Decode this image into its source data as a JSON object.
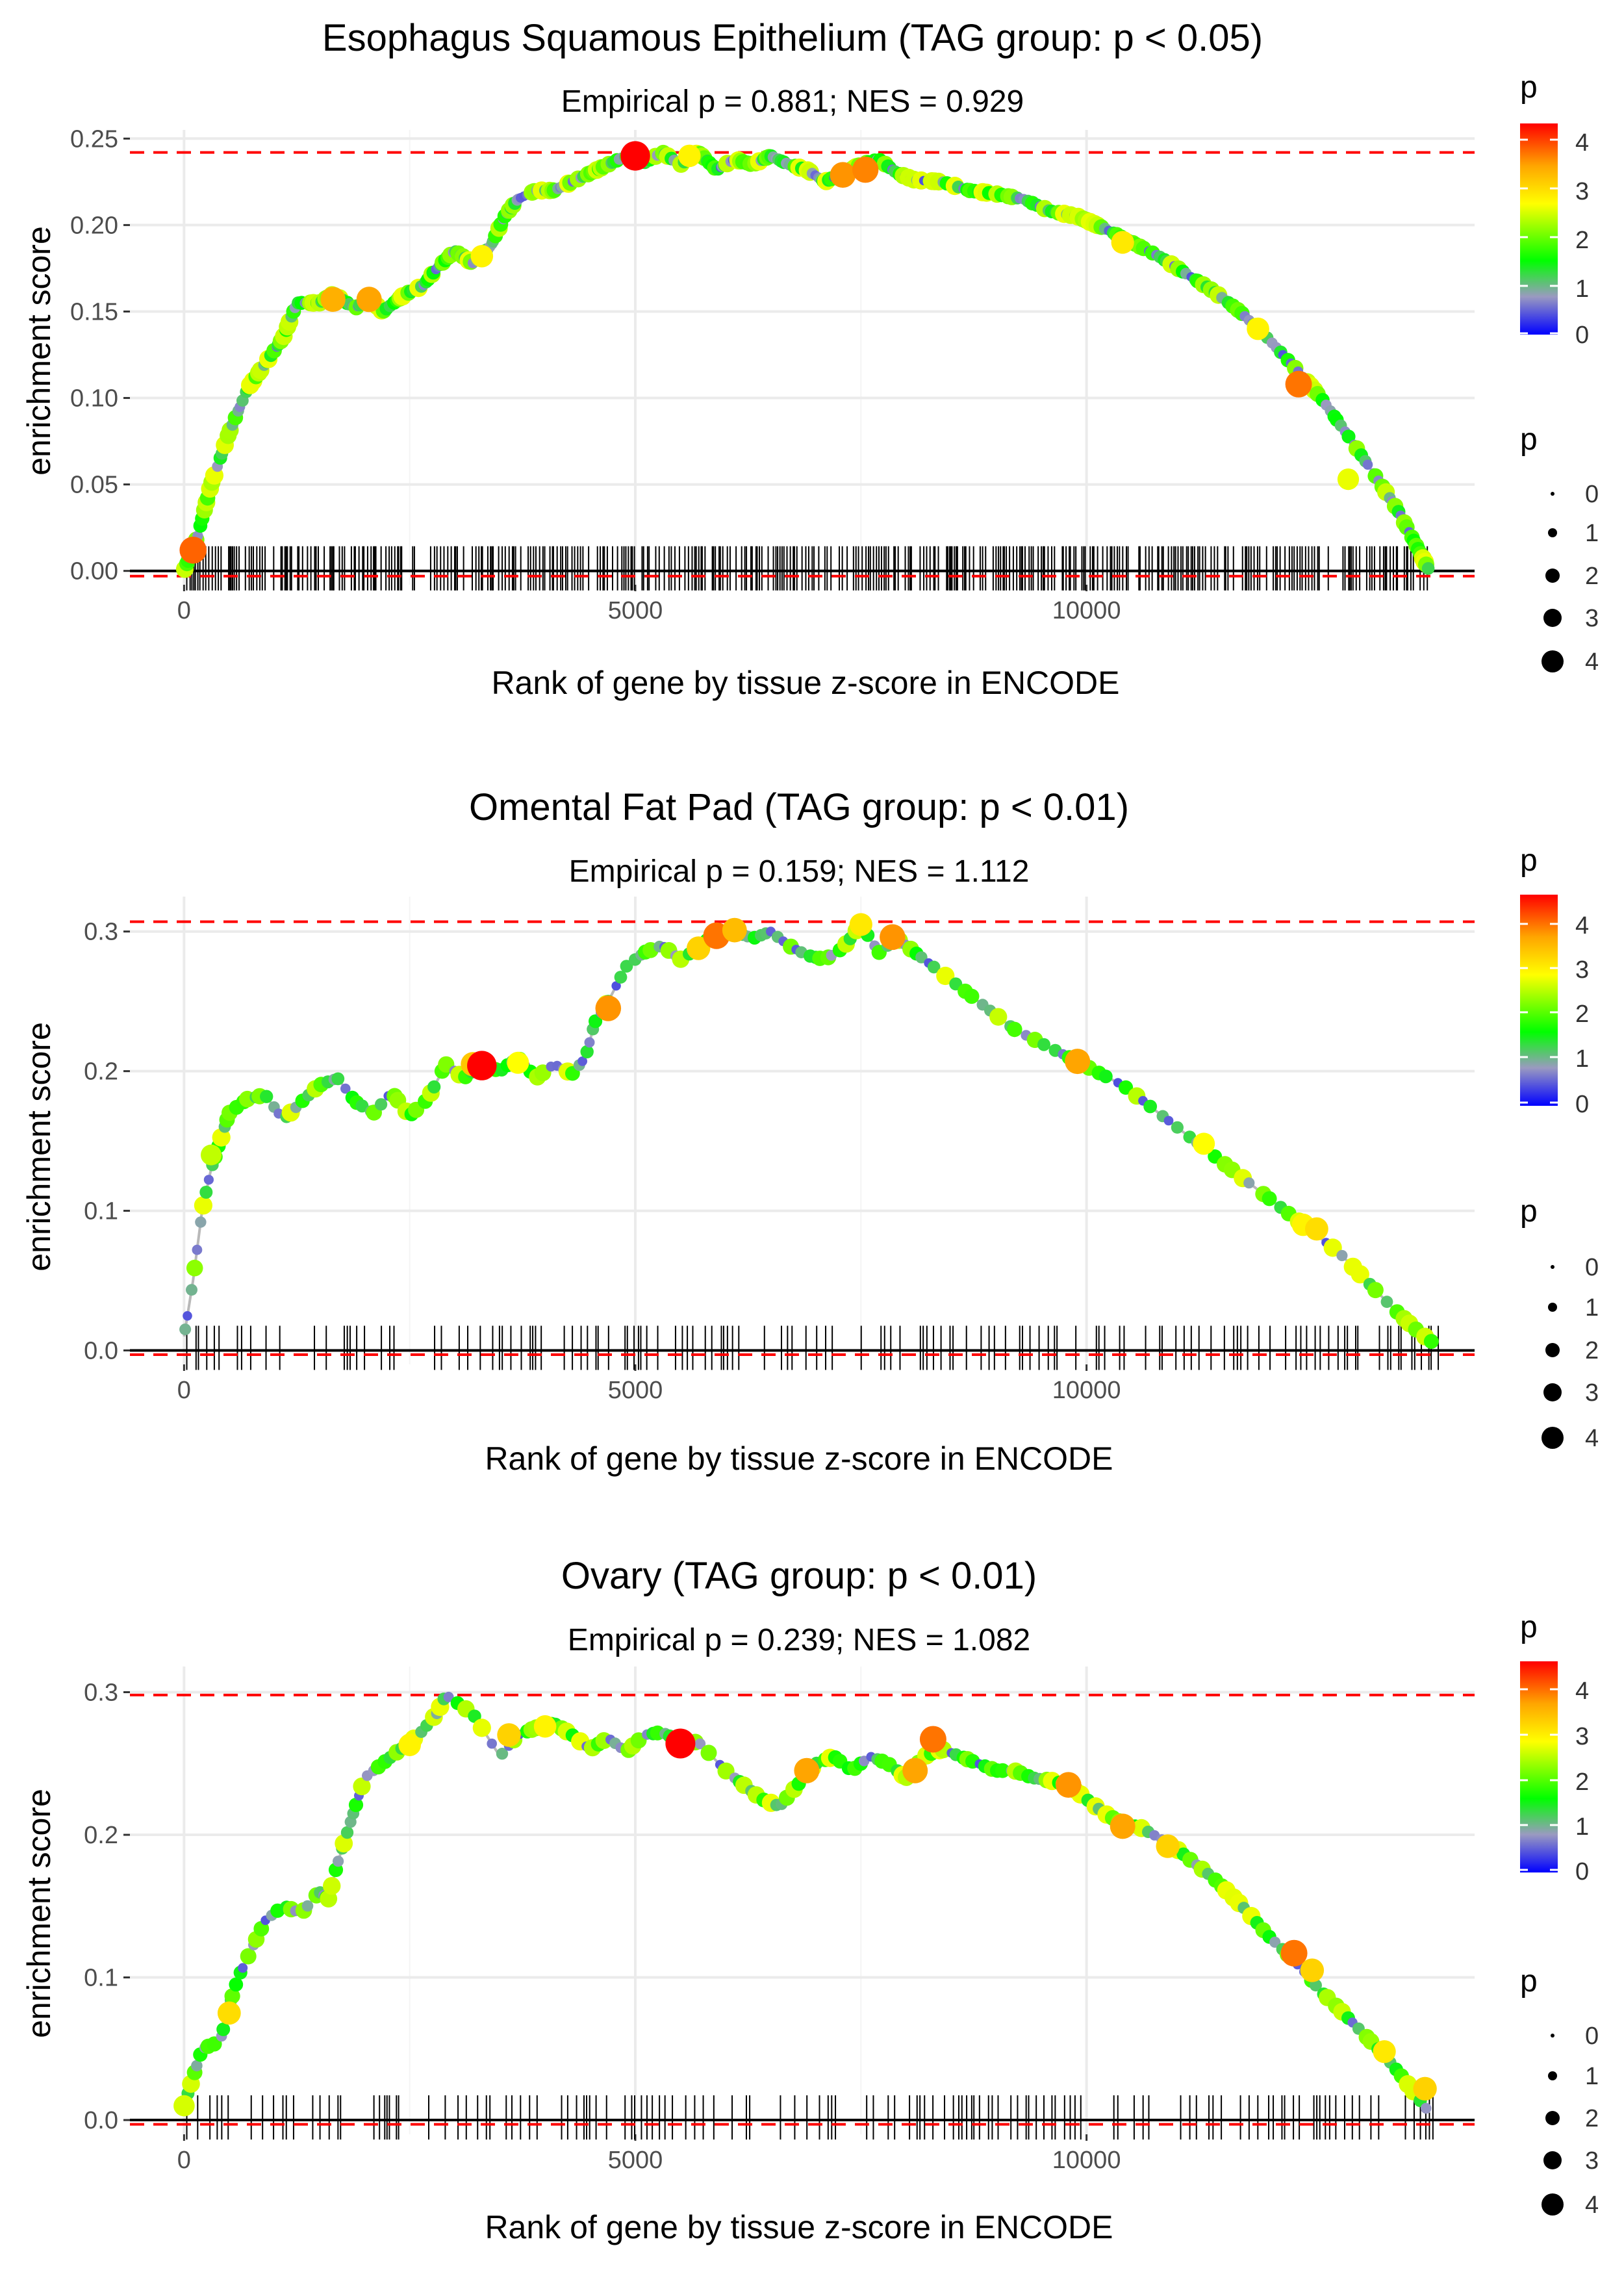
{
  "axis_common": {
    "xlabel": "Rank of gene by tissue z-score in ENCODE",
    "ylabel": "enrichment score",
    "x_ticks": [
      "0",
      "5000",
      "10000"
    ],
    "x_tick_values": [
      0,
      5000,
      10000
    ],
    "xlim": [
      -600,
      14300
    ],
    "legend_color_title": "p",
    "legend_color_ticks": [
      "4",
      "3",
      "2",
      "1",
      "0"
    ],
    "legend_size_title": "p",
    "legend_size_entries": [
      "0",
      "1",
      "2",
      "3",
      "4"
    ]
  },
  "colors": {
    "scale": [
      "#0000ff",
      "#9a9ac0",
      "#00ff00",
      "#ffff00",
      "#ffa500",
      "#ff0000"
    ],
    "line": "#b8b8b8",
    "dashed": "#ff0000",
    "grid": "#ebebeb",
    "rug": "#000000"
  },
  "chart_data": [
    {
      "type": "scatter",
      "title": "Esophagus Squamous Epithelium (TAG group: p < 0.05)",
      "subtitle": "Empirical p = 0.881; NES = 0.929",
      "xlabel": "Rank of gene by tissue z-score in ENCODE",
      "ylabel": "enrichment score",
      "ylim": [
        -0.008,
        0.255
      ],
      "y_ticks": [
        "0.00",
        "0.05",
        "0.10",
        "0.15",
        "0.20",
        "0.25"
      ],
      "y_tick_values": [
        0,
        0.05,
        0.1,
        0.15,
        0.2,
        0.25
      ],
      "max_es": 0.242,
      "min_es": -0.003,
      "gene_count": 13800,
      "curve": [
        [
          0,
          0
        ],
        [
          150,
          0.02
        ],
        [
          300,
          0.05
        ],
        [
          500,
          0.08
        ],
        [
          700,
          0.105
        ],
        [
          900,
          0.12
        ],
        [
          1100,
          0.135
        ],
        [
          1250,
          0.155
        ],
        [
          1500,
          0.155
        ],
        [
          1650,
          0.16
        ],
        [
          1900,
          0.152
        ],
        [
          2050,
          0.158
        ],
        [
          2200,
          0.15
        ],
        [
          2450,
          0.16
        ],
        [
          2650,
          0.165
        ],
        [
          2800,
          0.175
        ],
        [
          3000,
          0.185
        ],
        [
          3200,
          0.178
        ],
        [
          3400,
          0.188
        ],
        [
          3550,
          0.205
        ],
        [
          3700,
          0.215
        ],
        [
          3900,
          0.22
        ],
        [
          4100,
          0.22
        ],
        [
          4300,
          0.225
        ],
        [
          4500,
          0.23
        ],
        [
          4700,
          0.235
        ],
        [
          4900,
          0.24
        ],
        [
          5100,
          0.236
        ],
        [
          5300,
          0.242
        ],
        [
          5500,
          0.235
        ],
        [
          5700,
          0.242
        ],
        [
          5900,
          0.232
        ],
        [
          6100,
          0.238
        ],
        [
          6300,
          0.235
        ],
        [
          6500,
          0.24
        ],
        [
          6700,
          0.235
        ],
        [
          6900,
          0.232
        ],
        [
          7100,
          0.225
        ],
        [
          7300,
          0.23
        ],
        [
          7500,
          0.235
        ],
        [
          7700,
          0.238
        ],
        [
          7900,
          0.23
        ],
        [
          8100,
          0.226
        ],
        [
          8400,
          0.225
        ],
        [
          8700,
          0.22
        ],
        [
          9000,
          0.218
        ],
        [
          9300,
          0.215
        ],
        [
          9600,
          0.208
        ],
        [
          9900,
          0.205
        ],
        [
          10200,
          0.198
        ],
        [
          10500,
          0.19
        ],
        [
          10800,
          0.182
        ],
        [
          11100,
          0.172
        ],
        [
          11400,
          0.162
        ],
        [
          11700,
          0.15
        ],
        [
          12000,
          0.135
        ],
        [
          12300,
          0.118
        ],
        [
          12600,
          0.1
        ],
        [
          12900,
          0.078
        ],
        [
          13200,
          0.055
        ],
        [
          13450,
          0.035
        ],
        [
          13650,
          0.015
        ],
        [
          13800,
          0.0
        ]
      ],
      "highlights": [
        [
          100,
          0.012,
          4.0
        ],
        [
          1650,
          0.157,
          3.5
        ],
        [
          2050,
          0.157,
          3.6
        ],
        [
          3300,
          0.182,
          2.9
        ],
        [
          5000,
          0.24,
          4.6
        ],
        [
          5600,
          0.24,
          2.9
        ],
        [
          7300,
          0.229,
          3.7
        ],
        [
          7550,
          0.232,
          3.8
        ],
        [
          10400,
          0.19,
          3.0
        ],
        [
          11900,
          0.14,
          2.9
        ],
        [
          12350,
          0.108,
          3.9
        ],
        [
          12900,
          0.053,
          2.7
        ]
      ]
    },
    {
      "type": "scatter",
      "title": "Omental Fat Pad (TAG group: p < 0.01)",
      "subtitle": "Empirical p = 0.159; NES = 1.112",
      "xlabel": "Rank of gene by tissue z-score in ENCODE",
      "ylabel": "enrichment score",
      "ylim": [
        -0.01,
        0.325
      ],
      "y_ticks": [
        "0.0",
        "0.1",
        "0.2",
        "0.3"
      ],
      "y_tick_values": [
        0,
        0.1,
        0.2,
        0.3
      ],
      "max_es": 0.307,
      "min_es": -0.003,
      "gene_count": 13900,
      "curve": [
        [
          0,
          0.01
        ],
        [
          100,
          0.05
        ],
        [
          200,
          0.1
        ],
        [
          300,
          0.13
        ],
        [
          400,
          0.15
        ],
        [
          500,
          0.17
        ],
        [
          700,
          0.18
        ],
        [
          900,
          0.183
        ],
        [
          1100,
          0.165
        ],
        [
          1300,
          0.178
        ],
        [
          1500,
          0.19
        ],
        [
          1700,
          0.195
        ],
        [
          1900,
          0.178
        ],
        [
          2100,
          0.17
        ],
        [
          2300,
          0.185
        ],
        [
          2500,
          0.168
        ],
        [
          2700,
          0.18
        ],
        [
          2900,
          0.205
        ],
        [
          3100,
          0.195
        ],
        [
          3300,
          0.205
        ],
        [
          3500,
          0.2
        ],
        [
          3700,
          0.21
        ],
        [
          3900,
          0.195
        ],
        [
          4100,
          0.205
        ],
        [
          4300,
          0.198
        ],
        [
          4450,
          0.21
        ],
        [
          4550,
          0.235
        ],
        [
          4700,
          0.25
        ],
        [
          4900,
          0.275
        ],
        [
          5100,
          0.285
        ],
        [
          5300,
          0.29
        ],
        [
          5500,
          0.28
        ],
        [
          5700,
          0.288
        ],
        [
          5900,
          0.3
        ],
        [
          6100,
          0.3
        ],
        [
          6300,
          0.295
        ],
        [
          6500,
          0.3
        ],
        [
          6700,
          0.29
        ],
        [
          6900,
          0.283
        ],
        [
          7100,
          0.28
        ],
        [
          7300,
          0.288
        ],
        [
          7500,
          0.305
        ],
        [
          7700,
          0.285
        ],
        [
          7900,
          0.295
        ],
        [
          8100,
          0.285
        ],
        [
          8300,
          0.275
        ],
        [
          8600,
          0.26
        ],
        [
          8900,
          0.245
        ],
        [
          9200,
          0.23
        ],
        [
          9500,
          0.22
        ],
        [
          9800,
          0.21
        ],
        [
          10100,
          0.2
        ],
        [
          10400,
          0.19
        ],
        [
          10700,
          0.175
        ],
        [
          11000,
          0.16
        ],
        [
          11300,
          0.145
        ],
        [
          11600,
          0.13
        ],
        [
          11900,
          0.115
        ],
        [
          12200,
          0.1
        ],
        [
          12500,
          0.085
        ],
        [
          12800,
          0.07
        ],
        [
          13100,
          0.05
        ],
        [
          13400,
          0.03
        ],
        [
          13650,
          0.015
        ],
        [
          13850,
          0.005
        ]
      ],
      "highlights": [
        [
          300,
          0.14,
          2.5
        ],
        [
          3200,
          0.205,
          3.3
        ],
        [
          3300,
          0.204,
          4.6
        ],
        [
          3700,
          0.206,
          2.8
        ],
        [
          4700,
          0.245,
          3.7
        ],
        [
          5700,
          0.288,
          3.2
        ],
        [
          5900,
          0.297,
          3.9
        ],
        [
          6100,
          0.301,
          3.4
        ],
        [
          7500,
          0.305,
          3.0
        ],
        [
          7850,
          0.296,
          3.7
        ],
        [
          9900,
          0.207,
          3.6
        ],
        [
          11300,
          0.148,
          2.8
        ],
        [
          12400,
          0.09,
          2.9
        ],
        [
          12550,
          0.087,
          3.1
        ]
      ]
    },
    {
      "type": "scatter",
      "title": "Ovary (TAG group: p < 0.01)",
      "subtitle": "Empirical p = 0.239; NES = 1.082",
      "xlabel": "Rank of gene by tissue z-score in ENCODE",
      "ylabel": "enrichment score",
      "ylim": [
        -0.01,
        0.318
      ],
      "y_ticks": [
        "0.0",
        "0.1",
        "0.2",
        "0.3"
      ],
      "y_tick_values": [
        0,
        0.1,
        0.2,
        0.3
      ],
      "max_es": 0.298,
      "min_es": -0.003,
      "gene_count": 13900,
      "curve": [
        [
          0,
          0.01
        ],
        [
          100,
          0.03
        ],
        [
          200,
          0.05
        ],
        [
          400,
          0.055
        ],
        [
          500,
          0.08
        ],
        [
          600,
          0.1
        ],
        [
          750,
          0.12
        ],
        [
          900,
          0.14
        ],
        [
          1100,
          0.15
        ],
        [
          1300,
          0.145
        ],
        [
          1500,
          0.16
        ],
        [
          1600,
          0.155
        ],
        [
          1700,
          0.18
        ],
        [
          1800,
          0.2
        ],
        [
          1900,
          0.22
        ],
        [
          2000,
          0.24
        ],
        [
          2200,
          0.25
        ],
        [
          2400,
          0.26
        ],
        [
          2600,
          0.27
        ],
        [
          2800,
          0.285
        ],
        [
          2900,
          0.298
        ],
        [
          3200,
          0.285
        ],
        [
          3500,
          0.255
        ],
        [
          3700,
          0.27
        ],
        [
          3900,
          0.275
        ],
        [
          4100,
          0.278
        ],
        [
          4300,
          0.27
        ],
        [
          4500,
          0.26
        ],
        [
          4700,
          0.268
        ],
        [
          4900,
          0.258
        ],
        [
          5100,
          0.27
        ],
        [
          5300,
          0.272
        ],
        [
          5500,
          0.265
        ],
        [
          5700,
          0.265
        ],
        [
          6000,
          0.245
        ],
        [
          6200,
          0.235
        ],
        [
          6400,
          0.225
        ],
        [
          6600,
          0.22
        ],
        [
          6800,
          0.235
        ],
        [
          7000,
          0.25
        ],
        [
          7200,
          0.255
        ],
        [
          7400,
          0.245
        ],
        [
          7600,
          0.255
        ],
        [
          7800,
          0.25
        ],
        [
          8000,
          0.24
        ],
        [
          8200,
          0.255
        ],
        [
          8400,
          0.26
        ],
        [
          8600,
          0.255
        ],
        [
          8800,
          0.25
        ],
        [
          9000,
          0.245
        ],
        [
          9200,
          0.245
        ],
        [
          9400,
          0.24
        ],
        [
          9600,
          0.238
        ],
        [
          9800,
          0.235
        ],
        [
          10000,
          0.225
        ],
        [
          10200,
          0.215
        ],
        [
          10400,
          0.208
        ],
        [
          10600,
          0.205
        ],
        [
          10800,
          0.198
        ],
        [
          11000,
          0.19
        ],
        [
          11200,
          0.18
        ],
        [
          11400,
          0.17
        ],
        [
          11600,
          0.158
        ],
        [
          11800,
          0.145
        ],
        [
          12000,
          0.13
        ],
        [
          12200,
          0.118
        ],
        [
          12400,
          0.105
        ],
        [
          12600,
          0.09
        ],
        [
          12800,
          0.078
        ],
        [
          13000,
          0.065
        ],
        [
          13200,
          0.052
        ],
        [
          13400,
          0.038
        ],
        [
          13600,
          0.022
        ],
        [
          13800,
          0.005
        ]
      ],
      "highlights": [
        [
          0,
          0.01,
          2.6
        ],
        [
          500,
          0.075,
          3.1
        ],
        [
          2500,
          0.263,
          2.9
        ],
        [
          3600,
          0.27,
          3.2
        ],
        [
          4000,
          0.276,
          2.9
        ],
        [
          5500,
          0.264,
          4.7
        ],
        [
          6900,
          0.245,
          3.6
        ],
        [
          8100,
          0.245,
          3.6
        ],
        [
          8300,
          0.267,
          3.9
        ],
        [
          9800,
          0.235,
          3.7
        ],
        [
          10400,
          0.206,
          3.6
        ],
        [
          10900,
          0.192,
          3.2
        ],
        [
          12300,
          0.117,
          3.9
        ],
        [
          12500,
          0.105,
          3.2
        ],
        [
          13300,
          0.048,
          3.0
        ],
        [
          13750,
          0.022,
          3.2
        ]
      ]
    }
  ]
}
